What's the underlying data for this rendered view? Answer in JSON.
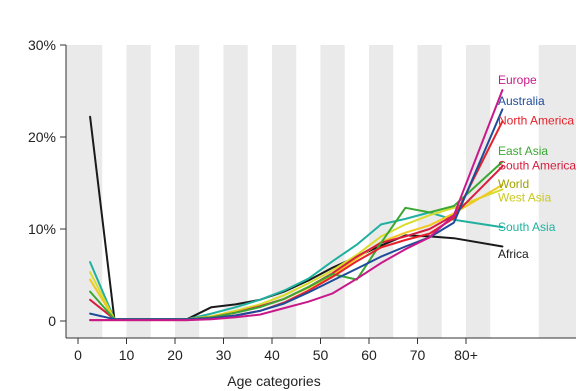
{
  "chart_data": {
    "type": "line",
    "title": "",
    "xlabel": "Age categories",
    "ylabel": "",
    "xlim": [
      -2,
      96
    ],
    "ylim": [
      0,
      30
    ],
    "x_ticks": [
      {
        "value": 0,
        "label": "0"
      },
      {
        "value": 10,
        "label": "10"
      },
      {
        "value": 20,
        "label": "20"
      },
      {
        "value": 30,
        "label": "30"
      },
      {
        "value": 40,
        "label": "40"
      },
      {
        "value": 50,
        "label": "50"
      },
      {
        "value": 60,
        "label": "60"
      },
      {
        "value": 70,
        "label": "70"
      },
      {
        "value": 80,
        "label": "80+"
      }
    ],
    "y_ticks": [
      {
        "value": 0,
        "label": "0"
      },
      {
        "value": 10,
        "label": "10%"
      },
      {
        "value": 20,
        "label": "20%"
      },
      {
        "value": 30,
        "label": "30%"
      }
    ],
    "shaded_bands": [
      [
        5,
        10
      ],
      [
        15,
        20
      ],
      [
        25,
        30
      ],
      [
        35,
        40
      ],
      [
        45,
        50
      ],
      [
        55,
        60
      ],
      [
        65,
        70
      ],
      [
        75,
        80
      ],
      [
        85,
        95
      ]
    ],
    "background_color": "#eaeaea",
    "band_color": "#ffffff",
    "x": [
      2.5,
      7.5,
      12.5,
      17.5,
      22.5,
      27.5,
      32.5,
      37.5,
      42.5,
      47.5,
      52.5,
      57.5,
      62.5,
      67.5,
      72.5,
      77.5,
      87.5
    ],
    "series": [
      {
        "name": "Africa",
        "color": "#1a1a1a",
        "values": [
          22.2,
          0.2,
          0.2,
          0.2,
          0.2,
          1.5,
          1.8,
          2.3,
          3.2,
          4.4,
          5.8,
          7.0,
          8.2,
          9.3,
          9.2,
          9.0,
          8.1
        ]
      },
      {
        "name": "South Asia",
        "color": "#20b0a0",
        "values": [
          6.4,
          0.2,
          0.2,
          0.2,
          0.2,
          0.8,
          1.5,
          2.3,
          3.3,
          4.6,
          6.5,
          8.3,
          10.5,
          11.1,
          11.8,
          11.0,
          10.2
        ]
      },
      {
        "name": "West Asia",
        "color": "#d8dc2a",
        "values": [
          5.3,
          0.2,
          0.2,
          0.2,
          0.2,
          0.5,
          1.1,
          1.8,
          2.8,
          4.1,
          5.5,
          7.2,
          9.2,
          10.5,
          11.5,
          12.3,
          14.3
        ]
      },
      {
        "name": "World",
        "color": "#f0c820",
        "values": [
          4.5,
          0.2,
          0.2,
          0.2,
          0.2,
          0.5,
          1.0,
          1.6,
          2.4,
          3.6,
          5.0,
          6.8,
          8.6,
          9.6,
          10.4,
          11.7,
          14.8
        ]
      },
      {
        "name": "South America",
        "color": "#d81e3e",
        "values": [
          2.3,
          0.2,
          0.2,
          0.2,
          0.2,
          0.4,
          0.9,
          1.6,
          2.4,
          3.7,
          5.2,
          7.0,
          8.5,
          9.2,
          10.0,
          11.5,
          16.8
        ]
      },
      {
        "name": "East Asia",
        "color": "#3aa832",
        "values": [
          3.2,
          0.2,
          0.2,
          0.2,
          0.2,
          0.4,
          0.9,
          1.5,
          2.4,
          3.7,
          5.1,
          4.5,
          8.5,
          12.3,
          11.8,
          12.5,
          17.3
        ]
      },
      {
        "name": "North America",
        "color": "#e8202a",
        "values": [
          0.1,
          0.1,
          0.1,
          0.1,
          0.1,
          0.3,
          0.6,
          1.1,
          2.0,
          3.3,
          4.8,
          6.5,
          8.0,
          8.8,
          9.5,
          11.2,
          21.7
        ]
      },
      {
        "name": "Australia",
        "color": "#1e4c9a",
        "values": [
          0.8,
          0.2,
          0.2,
          0.2,
          0.2,
          0.3,
          0.6,
          1.1,
          1.9,
          3.1,
          4.4,
          5.7,
          7.0,
          8.1,
          9.1,
          10.7,
          23.0
        ]
      },
      {
        "name": "Europe",
        "color": "#c8198a",
        "values": [
          0.1,
          0.1,
          0.1,
          0.1,
          0.1,
          0.2,
          0.4,
          0.7,
          1.4,
          2.1,
          3.0,
          4.6,
          6.3,
          7.8,
          9.1,
          11.5,
          25.1
        ]
      }
    ],
    "legend": [
      {
        "name": "Europe",
        "color": "#c8198a",
        "value_pos": 26.2
      },
      {
        "name": "Australia",
        "color": "#1e4c9a",
        "value_pos": 23.9
      },
      {
        "name": "North America",
        "color": "#e8202a",
        "value_pos": 21.8
      },
      {
        "name": "East Asia",
        "color": "#3aa832",
        "value_pos": 18.5
      },
      {
        "name": "South America",
        "color": "#d81e3e",
        "value_pos": 16.9
      },
      {
        "name": "World",
        "color": "#a0a000",
        "value_pos": 14.9
      },
      {
        "name": "West Asia",
        "color": "#c8c820",
        "value_pos": 13.4
      },
      {
        "name": "South Asia",
        "color": "#20b0a0",
        "value_pos": 10.2
      },
      {
        "name": "Africa",
        "color": "#1a1a1a",
        "value_pos": 7.3
      }
    ]
  }
}
